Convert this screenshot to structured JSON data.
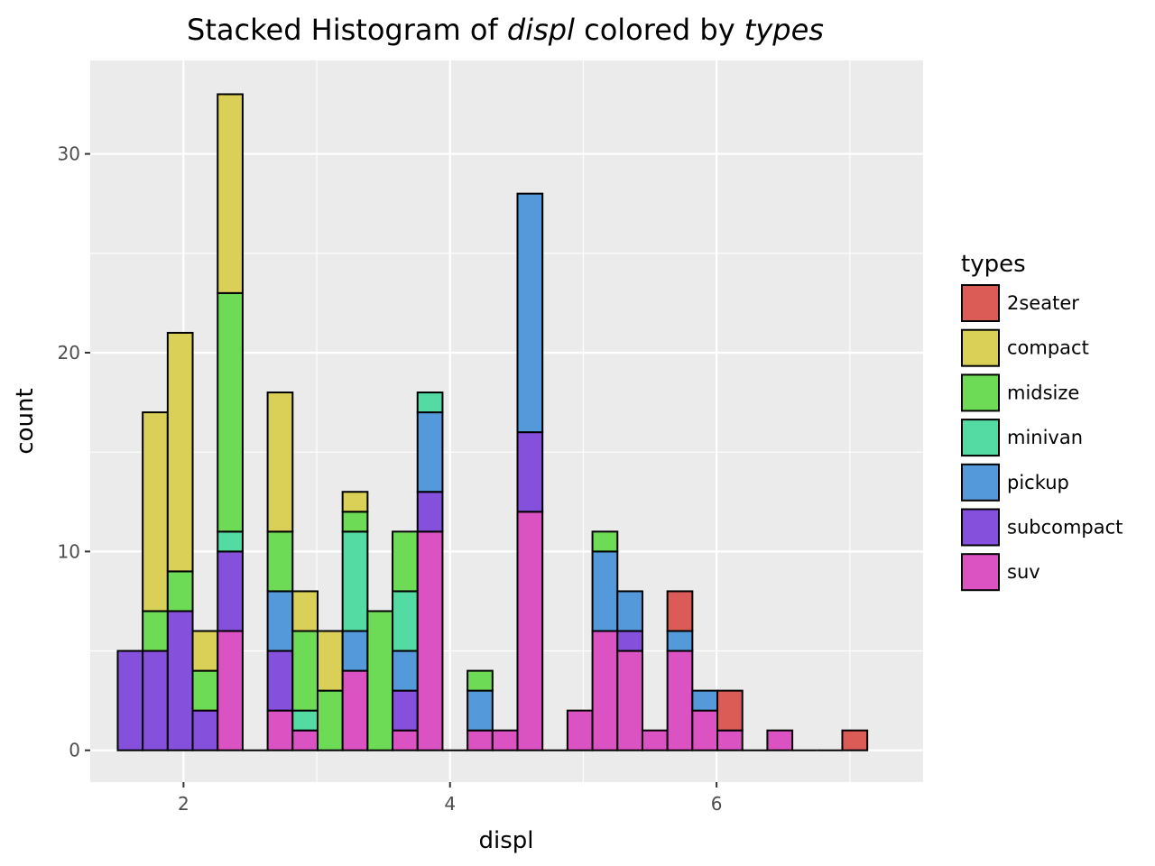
{
  "chart_data": {
    "type": "bar",
    "stacked": true,
    "title": {
      "prefix": "Stacked Histogram of ",
      "var": "displ",
      "middle": " colored by ",
      "group": "types"
    },
    "xlabel": "displ",
    "ylabel": "count",
    "xlim": [
      1.3,
      7.55
    ],
    "ylim": [
      -1.6,
      34.7
    ],
    "xticks": [
      2,
      4,
      6
    ],
    "yticks": [
      0,
      10,
      20,
      30
    ],
    "grid": true,
    "legend": {
      "title": "types",
      "position": "right"
    },
    "bin_width": 0.1875,
    "x": [
      1.6,
      1.7875,
      1.975,
      2.1625,
      2.35,
      2.5375,
      2.725,
      2.9125,
      3.1,
      3.2875,
      3.475,
      3.6625,
      3.85,
      4.0375,
      4.225,
      4.4125,
      4.6,
      4.7875,
      4.975,
      5.1625,
      5.35,
      5.5375,
      5.725,
      5.9125,
      6.1,
      6.2875,
      6.475,
      6.6625,
      6.85,
      7.0375
    ],
    "series": [
      {
        "name": "suv",
        "color": "#DB52C3",
        "values": [
          0,
          0,
          0,
          0,
          6,
          0,
          2,
          1,
          0,
          4,
          0,
          1,
          11,
          0,
          1,
          1,
          12,
          0,
          2,
          6,
          5,
          1,
          5,
          2,
          1,
          0,
          1,
          0,
          0,
          0
        ]
      },
      {
        "name": "subcompact",
        "color": "#8450DC",
        "values": [
          5,
          5,
          7,
          2,
          4,
          0,
          3,
          0,
          0,
          0,
          0,
          2,
          2,
          0,
          0,
          0,
          4,
          0,
          0,
          0,
          1,
          0,
          0,
          0,
          0,
          0,
          0,
          0,
          0,
          0
        ]
      },
      {
        "name": "pickup",
        "color": "#549ADB",
        "values": [
          0,
          0,
          0,
          0,
          0,
          0,
          3,
          0,
          0,
          2,
          0,
          2,
          4,
          0,
          2,
          0,
          12,
          0,
          0,
          4,
          2,
          0,
          1,
          1,
          0,
          0,
          0,
          0,
          0,
          0
        ]
      },
      {
        "name": "minivan",
        "color": "#54DAA3",
        "values": [
          0,
          0,
          0,
          0,
          1,
          0,
          0,
          1,
          0,
          5,
          0,
          3,
          1,
          0,
          0,
          0,
          0,
          0,
          0,
          0,
          0,
          0,
          0,
          0,
          0,
          0,
          0,
          0,
          0,
          0
        ]
      },
      {
        "name": "midsize",
        "color": "#6EDB56",
        "values": [
          0,
          2,
          2,
          2,
          12,
          0,
          3,
          4,
          3,
          1,
          7,
          3,
          0,
          0,
          1,
          0,
          0,
          0,
          0,
          1,
          0,
          0,
          0,
          0,
          0,
          0,
          0,
          0,
          0,
          0
        ]
      },
      {
        "name": "compact",
        "color": "#DACF57",
        "values": [
          0,
          10,
          12,
          2,
          10,
          0,
          7,
          2,
          3,
          1,
          0,
          0,
          0,
          0,
          0,
          0,
          0,
          0,
          0,
          0,
          0,
          0,
          0,
          0,
          0,
          0,
          0,
          0,
          0,
          0
        ]
      },
      {
        "name": "2seater",
        "color": "#DB5C57",
        "values": [
          0,
          0,
          0,
          0,
          0,
          0,
          0,
          0,
          0,
          0,
          0,
          0,
          0,
          0,
          0,
          0,
          0,
          0,
          0,
          0,
          0,
          0,
          2,
          0,
          2,
          0,
          0,
          0,
          0,
          1
        ]
      }
    ],
    "legend_order": [
      "2seater",
      "compact",
      "midsize",
      "minivan",
      "pickup",
      "subcompact",
      "suv"
    ]
  }
}
